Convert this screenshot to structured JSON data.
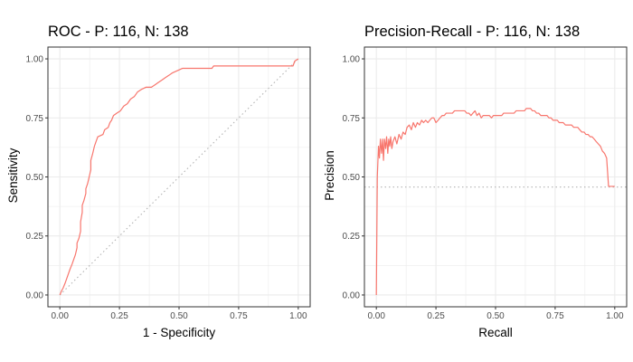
{
  "colors": {
    "curve": "#F8766D",
    "reference": "#b3b3b3",
    "grid": "#ebebeb",
    "frame": "#333333"
  },
  "chart_data": [
    {
      "type": "line",
      "title": "ROC - P: 116, N: 138",
      "xlabel": "1 - Specificity",
      "ylabel": "Sensitivity",
      "xlim": [
        0,
        1
      ],
      "ylim": [
        0,
        1
      ],
      "grid": true,
      "xticks": [
        "0.00",
        "0.25",
        "0.50",
        "0.75",
        "1.00"
      ],
      "yticks": [
        "0.00",
        "0.25",
        "0.50",
        "0.75",
        "1.00"
      ],
      "reference_line": {
        "style": "dotted",
        "from": [
          0,
          0
        ],
        "to": [
          1,
          1
        ]
      },
      "series": [
        {
          "points": [
            [
              0,
              0
            ],
            [
              0.007,
              0.017
            ],
            [
              0.014,
              0.03
            ],
            [
              0.022,
              0.05
            ],
            [
              0.029,
              0.07
            ],
            [
              0.036,
              0.09
            ],
            [
              0.043,
              0.11
            ],
            [
              0.051,
              0.13
            ],
            [
              0.058,
              0.15
            ],
            [
              0.065,
              0.17
            ],
            [
              0.072,
              0.2
            ],
            [
              0.072,
              0.22
            ],
            [
              0.08,
              0.24
            ],
            [
              0.087,
              0.27
            ],
            [
              0.087,
              0.31
            ],
            [
              0.094,
              0.35
            ],
            [
              0.094,
              0.38
            ],
            [
              0.101,
              0.4
            ],
            [
              0.109,
              0.43
            ],
            [
              0.109,
              0.45
            ],
            [
              0.116,
              0.47
            ],
            [
              0.123,
              0.5
            ],
            [
              0.13,
              0.53
            ],
            [
              0.13,
              0.57
            ],
            [
              0.138,
              0.6
            ],
            [
              0.145,
              0.63
            ],
            [
              0.152,
              0.65
            ],
            [
              0.159,
              0.67
            ],
            [
              0.181,
              0.68
            ],
            [
              0.188,
              0.7
            ],
            [
              0.203,
              0.71
            ],
            [
              0.21,
              0.73
            ],
            [
              0.217,
              0.74
            ],
            [
              0.225,
              0.76
            ],
            [
              0.239,
              0.77
            ],
            [
              0.254,
              0.78
            ],
            [
              0.268,
              0.8
            ],
            [
              0.283,
              0.81
            ],
            [
              0.297,
              0.83
            ],
            [
              0.312,
              0.84
            ],
            [
              0.326,
              0.86
            ],
            [
              0.341,
              0.87
            ],
            [
              0.362,
              0.88
            ],
            [
              0.384,
              0.88
            ],
            [
              0.399,
              0.89
            ],
            [
              0.413,
              0.9
            ],
            [
              0.428,
              0.91
            ],
            [
              0.442,
              0.92
            ],
            [
              0.457,
              0.93
            ],
            [
              0.471,
              0.94
            ],
            [
              0.493,
              0.95
            ],
            [
              0.515,
              0.96
            ],
            [
              0.572,
              0.96
            ],
            [
              0.616,
              0.96
            ],
            [
              0.638,
              0.96
            ],
            [
              0.645,
              0.97
            ],
            [
              0.703,
              0.97
            ],
            [
              0.768,
              0.97
            ],
            [
              0.855,
              0.97
            ],
            [
              0.92,
              0.97
            ],
            [
              0.978,
              0.97
            ],
            [
              0.985,
              0.99
            ],
            [
              1.0,
              1.0
            ]
          ]
        }
      ]
    },
    {
      "type": "line",
      "title": "Precision-Recall - P: 116, N: 138",
      "xlabel": "Recall",
      "ylabel": "Precision",
      "xlim": [
        0,
        1
      ],
      "ylim": [
        0,
        1
      ],
      "grid": true,
      "xticks": [
        "0.00",
        "0.25",
        "0.50",
        "0.75",
        "1.00"
      ],
      "yticks": [
        "0.00",
        "0.25",
        "0.50",
        "0.75",
        "1.00"
      ],
      "reference_line": {
        "style": "dotted",
        "y": 0.457
      },
      "series": [
        {
          "points": [
            [
              0,
              0
            ],
            [
              0.004,
              0.5
            ],
            [
              0.009,
              0.63
            ],
            [
              0.013,
              0.58
            ],
            [
              0.017,
              0.66
            ],
            [
              0.022,
              0.6
            ],
            [
              0.026,
              0.66
            ],
            [
              0.03,
              0.57
            ],
            [
              0.034,
              0.66
            ],
            [
              0.039,
              0.62
            ],
            [
              0.043,
              0.67
            ],
            [
              0.048,
              0.6
            ],
            [
              0.052,
              0.66
            ],
            [
              0.056,
              0.63
            ],
            [
              0.06,
              0.67
            ],
            [
              0.065,
              0.62
            ],
            [
              0.07,
              0.65
            ],
            [
              0.078,
              0.67
            ],
            [
              0.086,
              0.64
            ],
            [
              0.095,
              0.68
            ],
            [
              0.104,
              0.66
            ],
            [
              0.112,
              0.69
            ],
            [
              0.121,
              0.68
            ],
            [
              0.129,
              0.71
            ],
            [
              0.138,
              0.72
            ],
            [
              0.147,
              0.7
            ],
            [
              0.155,
              0.73
            ],
            [
              0.164,
              0.71
            ],
            [
              0.172,
              0.73
            ],
            [
              0.181,
              0.72
            ],
            [
              0.19,
              0.74
            ],
            [
              0.198,
              0.73
            ],
            [
              0.207,
              0.74
            ],
            [
              0.216,
              0.73
            ],
            [
              0.224,
              0.74
            ],
            [
              0.233,
              0.75
            ],
            [
              0.241,
              0.75
            ],
            [
              0.25,
              0.73
            ],
            [
              0.259,
              0.74
            ],
            [
              0.267,
              0.75
            ],
            [
              0.276,
              0.76
            ],
            [
              0.285,
              0.76
            ],
            [
              0.293,
              0.77
            ],
            [
              0.302,
              0.77
            ],
            [
              0.31,
              0.77
            ],
            [
              0.319,
              0.77
            ],
            [
              0.328,
              0.78
            ],
            [
              0.336,
              0.78
            ],
            [
              0.345,
              0.78
            ],
            [
              0.353,
              0.78
            ],
            [
              0.362,
              0.78
            ],
            [
              0.371,
              0.78
            ],
            [
              0.379,
              0.77
            ],
            [
              0.388,
              0.77
            ],
            [
              0.397,
              0.76
            ],
            [
              0.405,
              0.77
            ],
            [
              0.414,
              0.78
            ],
            [
              0.422,
              0.76
            ],
            [
              0.431,
              0.77
            ],
            [
              0.44,
              0.75
            ],
            [
              0.448,
              0.76
            ],
            [
              0.457,
              0.76
            ],
            [
              0.466,
              0.76
            ],
            [
              0.474,
              0.76
            ],
            [
              0.483,
              0.75
            ],
            [
              0.491,
              0.76
            ],
            [
              0.5,
              0.76
            ],
            [
              0.509,
              0.76
            ],
            [
              0.517,
              0.76
            ],
            [
              0.526,
              0.76
            ],
            [
              0.534,
              0.77
            ],
            [
              0.543,
              0.77
            ],
            [
              0.552,
              0.77
            ],
            [
              0.56,
              0.77
            ],
            [
              0.569,
              0.77
            ],
            [
              0.578,
              0.77
            ],
            [
              0.586,
              0.78
            ],
            [
              0.595,
              0.78
            ],
            [
              0.603,
              0.78
            ],
            [
              0.612,
              0.78
            ],
            [
              0.621,
              0.78
            ],
            [
              0.629,
              0.79
            ],
            [
              0.638,
              0.79
            ],
            [
              0.647,
              0.79
            ],
            [
              0.655,
              0.78
            ],
            [
              0.664,
              0.78
            ],
            [
              0.672,
              0.77
            ],
            [
              0.681,
              0.77
            ],
            [
              0.69,
              0.76
            ],
            [
              0.698,
              0.76
            ],
            [
              0.707,
              0.76
            ],
            [
              0.716,
              0.76
            ],
            [
              0.724,
              0.75
            ],
            [
              0.733,
              0.75
            ],
            [
              0.741,
              0.74
            ],
            [
              0.75,
              0.74
            ],
            [
              0.759,
              0.74
            ],
            [
              0.767,
              0.73
            ],
            [
              0.776,
              0.73
            ],
            [
              0.784,
              0.73
            ],
            [
              0.793,
              0.72
            ],
            [
              0.802,
              0.72
            ],
            [
              0.81,
              0.72
            ],
            [
              0.819,
              0.72
            ],
            [
              0.828,
              0.71
            ],
            [
              0.836,
              0.71
            ],
            [
              0.845,
              0.71
            ],
            [
              0.853,
              0.7
            ],
            [
              0.862,
              0.69
            ],
            [
              0.871,
              0.69
            ],
            [
              0.879,
              0.68
            ],
            [
              0.888,
              0.68
            ],
            [
              0.897,
              0.67
            ],
            [
              0.905,
              0.67
            ],
            [
              0.914,
              0.66
            ],
            [
              0.922,
              0.65
            ],
            [
              0.931,
              0.64
            ],
            [
              0.94,
              0.63
            ],
            [
              0.948,
              0.61
            ],
            [
              0.957,
              0.6
            ],
            [
              0.966,
              0.58
            ],
            [
              0.97,
              0.52
            ],
            [
              0.974,
              0.46
            ],
            [
              0.983,
              0.46
            ],
            [
              0.991,
              0.46
            ],
            [
              1.0,
              0.46
            ]
          ]
        }
      ]
    }
  ]
}
